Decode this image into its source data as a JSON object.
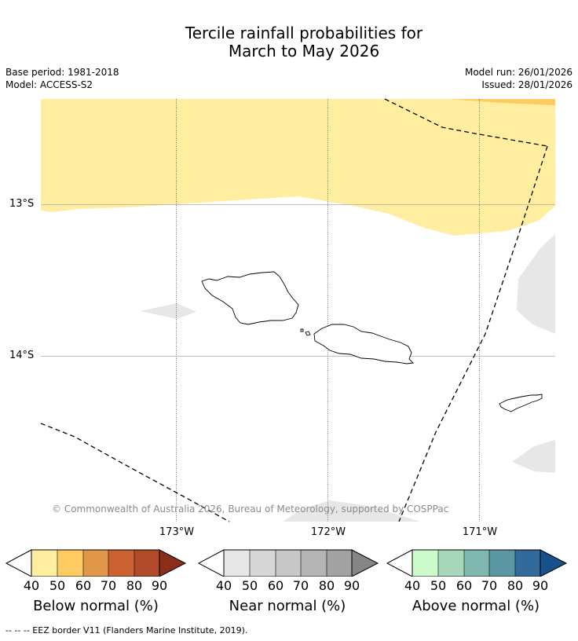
{
  "title_line1": "Tercile rainfall probabilities for",
  "title_line2": "March to May 2026",
  "meta_left": [
    "Base period: 1981-2018",
    "Model: ACCESS-S2"
  ],
  "meta_right": [
    "Model run: 26/01/2026",
    "Issued: 28/01/2026"
  ],
  "latitudes": [
    "13°S",
    "14°S"
  ],
  "longitudes": [
    "173°W",
    "172°W",
    "171°W"
  ],
  "copyright": "© Commonwealth of Australia 2026, Bureau of Meteorology, supported by COSPPac",
  "colorbars": [
    {
      "label": "Below normal (%)",
      "ticks": [
        "40",
        "50",
        "60",
        "70",
        "80",
        "90"
      ],
      "colors": [
        "#ffeda0",
        "#fecb62",
        "#e0974a",
        "#cc6231",
        "#b04a28",
        "#8c2d1c"
      ]
    },
    {
      "label": "Near normal (%)",
      "ticks": [
        "40",
        "50",
        "60",
        "70",
        "80",
        "90"
      ],
      "colors": [
        "#e7e7e7",
        "#d7d7d7",
        "#c7c7c7",
        "#b4b4b4",
        "#a2a2a2",
        "#858585"
      ]
    },
    {
      "label": "Above normal (%)",
      "ticks": [
        "40",
        "50",
        "60",
        "70",
        "80",
        "90"
      ],
      "colors": [
        "#ccfbcc",
        "#a8d8bc",
        "#80b8b0",
        "#5b97a3",
        "#336a9c",
        "#17518c"
      ]
    }
  ],
  "legend_note": "--  --  -- EEZ border V11 (Flanders Marine Institute, 2019)."
}
